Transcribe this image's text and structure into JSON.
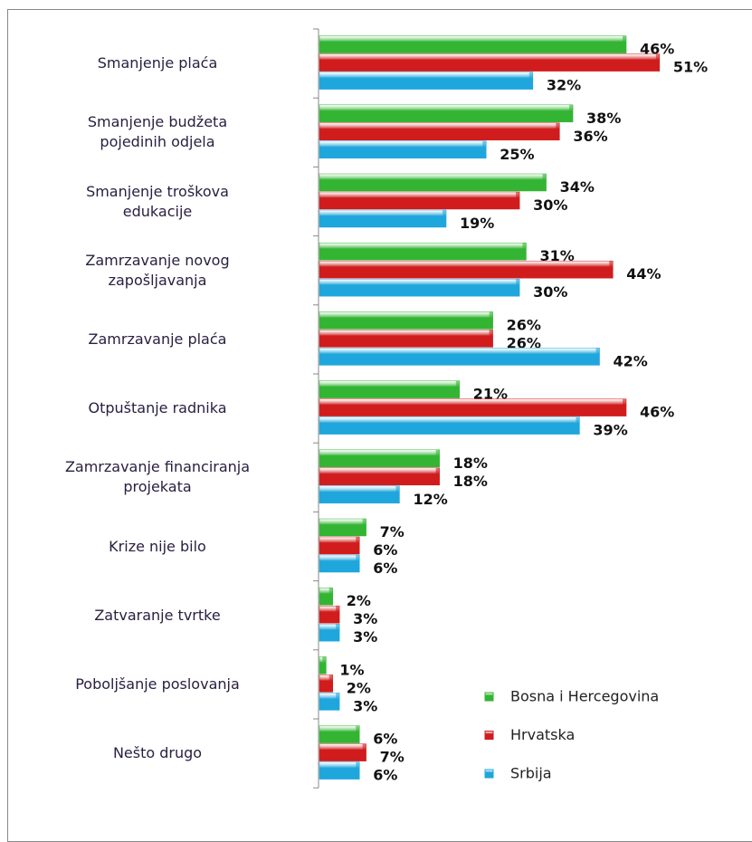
{
  "chart_data": {
    "type": "bar",
    "orientation": "horizontal",
    "categories": [
      "Smanjenje plaća",
      "Smanjenje budžeta\npojedinih odjela",
      "Smanjenje troškova\nedukacije",
      "Zamrzavanje novog\nzapošljavanja",
      "Zamrzavanje plaća",
      "Otpuštanje radnika",
      "Zamrzavanje financiranja\nprojekata",
      "Krize nije bilo",
      "Zatvaranje tvrtke",
      "Poboljšanje poslovanja",
      "Nešto drugo"
    ],
    "series": [
      {
        "name": "Bosna i Hercegovina",
        "color": "#33b533",
        "values": [
          46,
          38,
          34,
          31,
          26,
          21,
          18,
          7,
          2,
          1,
          6
        ],
        "value_labels": [
          "46%",
          "38%",
          "34%",
          "31%",
          "26%",
          "21%",
          "18%",
          "7%",
          "2%",
          "1%",
          "6%"
        ]
      },
      {
        "name": "Hrvatska",
        "color": "#d01c1c",
        "values": [
          51,
          36,
          30,
          44,
          26,
          46,
          18,
          6,
          3,
          2,
          7
        ],
        "value_labels": [
          "51%",
          "36%",
          "30%",
          "44%",
          "26%",
          "46%",
          "18%",
          "6%",
          "3%",
          "2%",
          "7%"
        ]
      },
      {
        "name": "Srbija",
        "color": "#1fa6dc",
        "values": [
          32,
          25,
          19,
          30,
          42,
          39,
          12,
          6,
          3,
          3,
          6
        ],
        "value_labels": [
          "32%",
          "25%",
          "19%",
          "30%",
          "42%",
          "39%",
          "12%",
          "6%",
          "3%",
          "3%",
          "6%"
        ]
      }
    ],
    "legend": "lower right"
  }
}
